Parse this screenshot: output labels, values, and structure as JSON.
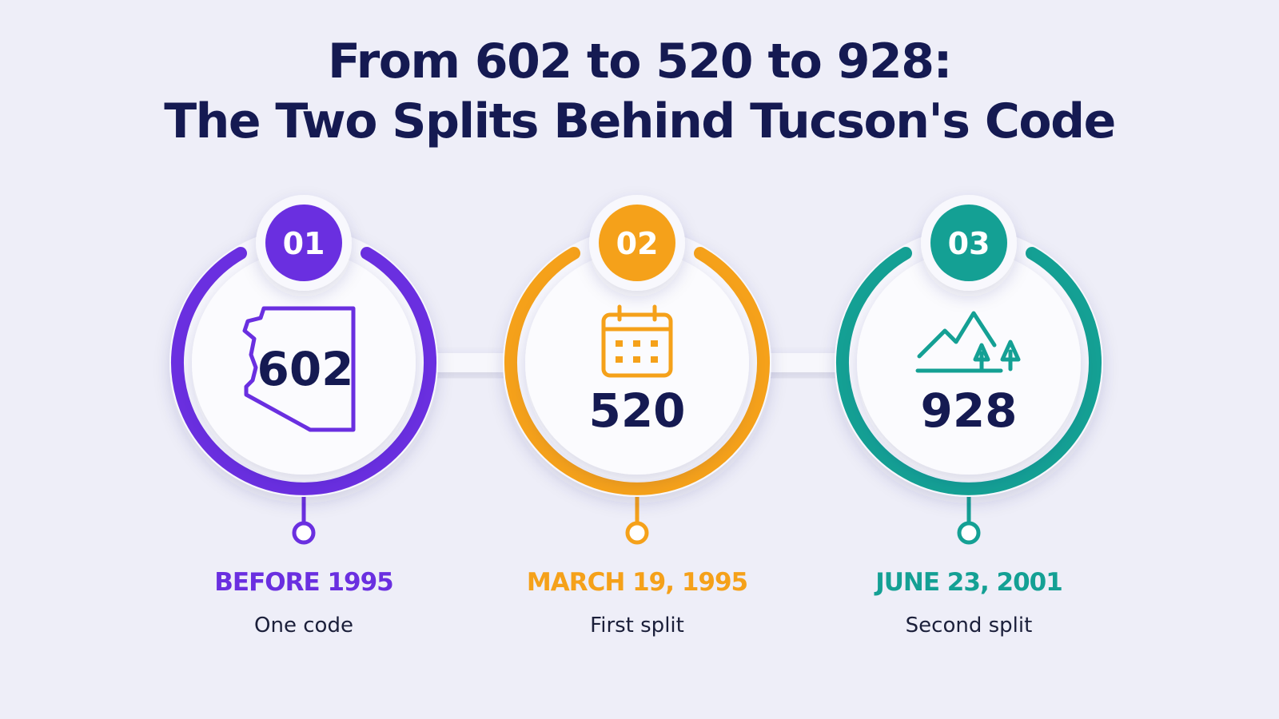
{
  "header": {
    "title": [
      "From 602 to 520 to 928:",
      "The Two Splits Behind Tucson's Code"
    ]
  },
  "steps": [
    {
      "number": "01",
      "code": "602",
      "date": "BEFORE 1995",
      "caption": "One code"
    },
    {
      "number": "02",
      "code": "520",
      "date": "MARCH 19, 1995",
      "caption": "First split"
    },
    {
      "number": "03",
      "code": "928",
      "date": "JUNE 23, 2001",
      "caption": "Second split"
    }
  ]
}
